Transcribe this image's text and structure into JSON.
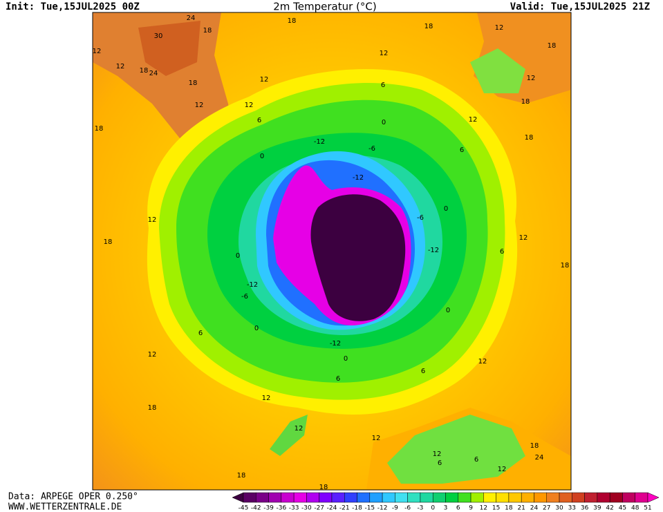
{
  "header": {
    "init": "Init: Tue,15JUL2025 00Z",
    "title": "2m Temperatur (°C)",
    "valid": "Valid: Tue,15JUL2025 21Z"
  },
  "footer": {
    "data": "Data: ARPEGE OPER 0.250°",
    "site": "WWW.WETTERZENTRALE.DE"
  },
  "contour_labels": [
    24,
    18,
    18,
    30,
    18,
    12,
    18,
    12,
    12,
    12,
    18,
    24,
    12,
    18,
    6,
    12,
    18,
    12,
    12,
    18,
    12,
    0,
    6,
    18,
    -12,
    -6,
    6,
    0,
    -12,
    0,
    -6,
    12,
    18,
    12,
    -12,
    6,
    0,
    18,
    -12,
    -6,
    0,
    0,
    6,
    -12,
    0,
    12,
    12,
    6,
    6,
    12,
    18,
    12,
    12,
    12,
    6,
    6,
    18,
    24,
    12,
    18,
    18
  ],
  "colorbar": {
    "labels": [
      -45,
      -42,
      -39,
      -36,
      -33,
      -30,
      -27,
      -24,
      -21,
      -18,
      -15,
      -12,
      -9,
      -6,
      -3,
      0,
      3,
      6,
      9,
      12,
      15,
      18,
      21,
      24,
      27,
      30,
      33,
      36,
      39,
      42,
      45,
      48,
      51
    ],
    "colors": [
      "#3c0040",
      "#5a0064",
      "#7a0088",
      "#a000b0",
      "#c800d0",
      "#e600e6",
      "#b000f0",
      "#8000ff",
      "#5a20ff",
      "#3040ff",
      "#2070ff",
      "#20a0ff",
      "#30c8ff",
      "#40e0f0",
      "#30e0c0",
      "#20d8a0",
      "#10d070",
      "#00d040",
      "#40e020",
      "#a0f000",
      "#fff000",
      "#ffe000",
      "#ffc800",
      "#ffb000",
      "#ff9800",
      "#f08020",
      "#e06020",
      "#d04020",
      "#c02030",
      "#b00030",
      "#a00020",
      "#c00060",
      "#e00090",
      "#ff00c0"
    ]
  }
}
